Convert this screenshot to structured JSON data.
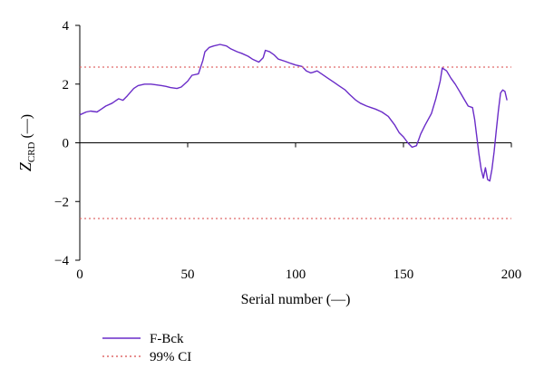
{
  "chart_data": {
    "type": "line",
    "xlabel": "Serial number (—)",
    "ylabel": {
      "main": "Z",
      "sub": "CRD",
      "suffix": " (—)"
    },
    "xlim": [
      0,
      200
    ],
    "ylim": [
      -4,
      4
    ],
    "xticks": [
      0,
      50,
      100,
      150,
      200
    ],
    "yticks": [
      -4,
      -2,
      0,
      2,
      4
    ],
    "grid": false,
    "legend_position": "bottom-left",
    "series": [
      {
        "name": "F-Bck",
        "color": "#6a2cc8",
        "style": "solid",
        "x": [
          0,
          3,
          5,
          8,
          10,
          12,
          15,
          18,
          20,
          22,
          25,
          27,
          30,
          33,
          35,
          38,
          40,
          42,
          45,
          47,
          50,
          52,
          55,
          57,
          58,
          60,
          62,
          65,
          68,
          70,
          73,
          75,
          78,
          80,
          83,
          85,
          86,
          88,
          90,
          92,
          95,
          98,
          100,
          103,
          105,
          107,
          108,
          110,
          112,
          115,
          118,
          120,
          123,
          125,
          128,
          130,
          133,
          135,
          137,
          140,
          143,
          146,
          148,
          150,
          152,
          154,
          156,
          157,
          158,
          160,
          163,
          165,
          167,
          168,
          170,
          172,
          174,
          176,
          178,
          180,
          182,
          183,
          184,
          185,
          186,
          187,
          188,
          189,
          190,
          191,
          192,
          193,
          194,
          195,
          196,
          197,
          198
        ],
        "y": [
          0.95,
          1.05,
          1.08,
          1.05,
          1.15,
          1.25,
          1.35,
          1.5,
          1.45,
          1.6,
          1.85,
          1.95,
          2.0,
          2.0,
          1.98,
          1.95,
          1.92,
          1.88,
          1.85,
          1.9,
          2.1,
          2.3,
          2.35,
          2.8,
          3.1,
          3.25,
          3.3,
          3.35,
          3.3,
          3.2,
          3.1,
          3.05,
          2.95,
          2.85,
          2.75,
          2.9,
          3.15,
          3.1,
          3.0,
          2.85,
          2.78,
          2.7,
          2.65,
          2.6,
          2.45,
          2.38,
          2.4,
          2.45,
          2.35,
          2.2,
          2.05,
          1.95,
          1.8,
          1.65,
          1.45,
          1.35,
          1.25,
          1.2,
          1.15,
          1.05,
          0.9,
          0.6,
          0.35,
          0.2,
          0.0,
          -0.15,
          -0.1,
          0.1,
          0.3,
          0.6,
          1.0,
          1.5,
          2.1,
          2.55,
          2.45,
          2.2,
          2.0,
          1.75,
          1.5,
          1.25,
          1.2,
          0.8,
          0.2,
          -0.4,
          -0.9,
          -1.2,
          -0.85,
          -1.25,
          -1.3,
          -0.9,
          -0.3,
          0.4,
          1.1,
          1.7,
          1.8,
          1.75,
          1.45
        ]
      },
      {
        "name": "99% CI",
        "color": "#e06a6a",
        "style": "dotted",
        "segments": [
          {
            "x": [
              0,
              200
            ],
            "y": [
              2.58,
              2.58
            ]
          },
          {
            "x": [
              0,
              200
            ],
            "y": [
              -2.58,
              -2.58
            ]
          }
        ]
      }
    ]
  }
}
